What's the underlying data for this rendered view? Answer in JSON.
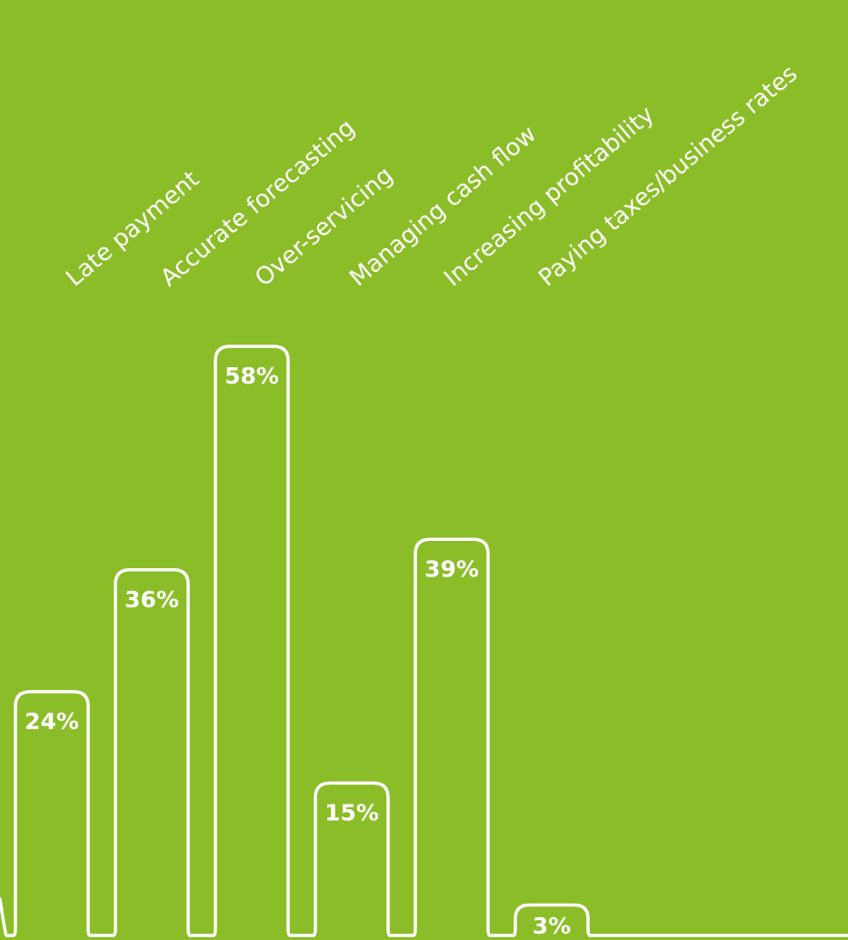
{
  "colors": {
    "background": "#8bbd28",
    "stroke": "#ffffff",
    "text": "#ffffff"
  },
  "chart_data": {
    "type": "bar",
    "categories": [
      "Late payment",
      "Accurate forecasting",
      "Over-servicing",
      "Managing cash flow",
      "Increasing profitability",
      "Paying taxes/business rates"
    ],
    "values": [
      24,
      36,
      58,
      15,
      39,
      3
    ],
    "value_labels": [
      "24%",
      "36%",
      "58%",
      "15%",
      "39%",
      "3%"
    ],
    "unit": "%",
    "title": "",
    "xlabel": "",
    "ylabel": "",
    "ylim": [
      0,
      58
    ],
    "grid": false,
    "legend": "none"
  }
}
